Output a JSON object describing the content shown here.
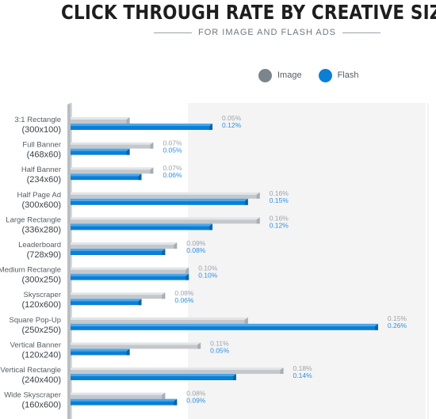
{
  "header": {
    "title": "CLICK THROUGH RATE BY CREATIVE SIZE",
    "subtitle": "FOR IMAGE AND FLASH ADS"
  },
  "legend": [
    {
      "name": "Image",
      "color": "#7d858c"
    },
    {
      "name": "Flash",
      "color": "#0a7fd6"
    }
  ],
  "chart_data": {
    "type": "bar",
    "orientation": "horizontal",
    "title": "CLICK THROUGH RATE BY CREATIVE SIZE",
    "subtitle": "FOR IMAGE AND FLASH ADS",
    "categories": [
      {
        "name": "3:1 Rectangle",
        "size": "(300x100)"
      },
      {
        "name": "Full Banner",
        "size": "(468x60)"
      },
      {
        "name": "Half Banner",
        "size": "(234x60)"
      },
      {
        "name": "Half Page Ad",
        "size": "(300x600)"
      },
      {
        "name": "Large Rectangle",
        "size": "(336x280)"
      },
      {
        "name": "Leaderboard",
        "size": "(728x90)"
      },
      {
        "name": "Medium Rectangle",
        "size": "(300x250)"
      },
      {
        "name": "Skyscraper",
        "size": "(120x600)"
      },
      {
        "name": "Square Pop-Up",
        "size": "(250x250)"
      },
      {
        "name": "Vertical Banner",
        "size": "(120x240)"
      },
      {
        "name": "Vertical Rectangle",
        "size": "(240x400)"
      },
      {
        "name": "Wide Skyscraper",
        "size": "(160x600)"
      }
    ],
    "series": [
      {
        "name": "Image",
        "color": "#7d858c",
        "values": [
          0.05,
          0.07,
          0.07,
          0.16,
          0.16,
          0.09,
          0.1,
          0.08,
          0.15,
          0.11,
          0.18,
          0.08
        ],
        "labels": [
          "0.05%",
          "0.07%",
          "0.07%",
          "0.16%",
          "0.16%",
          "0.09%",
          "0.10%",
          "0.08%",
          "0.15%",
          "0.11%",
          "0.18%",
          "0.08%"
        ]
      },
      {
        "name": "Flash",
        "color": "#0a7fd6",
        "values": [
          0.12,
          0.05,
          0.06,
          0.15,
          0.12,
          0.08,
          0.1,
          0.06,
          0.26,
          0.05,
          0.14,
          0.09
        ],
        "labels": [
          "0.12%",
          "0.05%",
          "0.06%",
          "0.15%",
          "0.12%",
          "0.08%",
          "0.10%",
          "0.06%",
          "0.26%",
          "0.05%",
          "0.14%",
          "0.09%"
        ]
      }
    ],
    "value_unit": "%",
    "grid": false,
    "legend_position": "top-right"
  }
}
